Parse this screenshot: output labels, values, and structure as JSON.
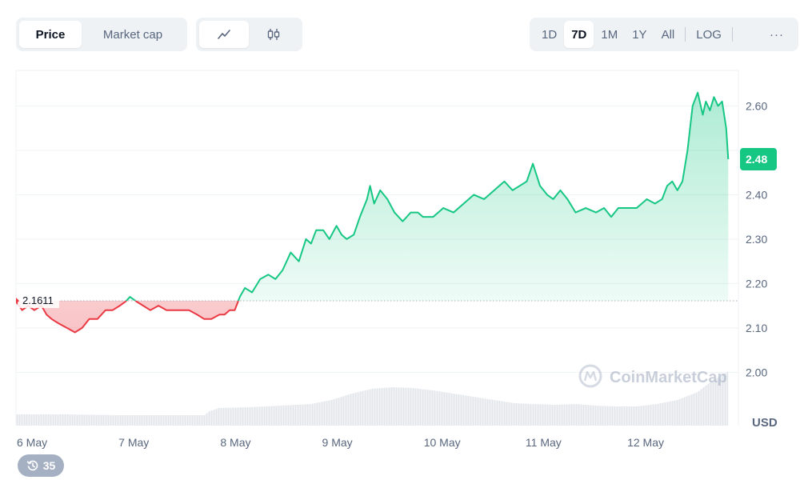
{
  "tabs": {
    "type": [
      {
        "label": "Price",
        "active": true
      },
      {
        "label": "Market cap",
        "active": false
      }
    ],
    "style": [
      {
        "icon": "line-chart-icon",
        "active": true
      },
      {
        "icon": "candlestick-icon",
        "active": false
      }
    ],
    "range": [
      {
        "label": "1D",
        "active": false
      },
      {
        "label": "7D",
        "active": true
      },
      {
        "label": "1M",
        "active": false
      },
      {
        "label": "1Y",
        "active": false
      },
      {
        "label": "All",
        "active": false
      }
    ],
    "log_label": "LOG",
    "more_label": "···"
  },
  "watermark": "CoinMarketCap",
  "history_count": "35",
  "colors": {
    "up": "#16c784",
    "down": "#ea3943",
    "grid": "#eff2f5",
    "axis_text": "#58667e",
    "volume": "#e8ebef"
  },
  "chart_data": {
    "type": "area",
    "currency_label": "USD",
    "baseline": 2.1611,
    "baseline_label": "2.1611",
    "current_value": 2.48,
    "current_label": "2.48",
    "ylim": [
      1.88,
      2.68
    ],
    "yticks": [
      2.0,
      2.1,
      2.2,
      2.3,
      2.4,
      2.5,
      2.6
    ],
    "ytick_labels": [
      "2.00",
      "2.10",
      "2.20",
      "2.30",
      "2.40",
      "",
      "2.60"
    ],
    "xlim": [
      0,
      7.1
    ],
    "xticks": [
      0,
      1,
      2,
      3,
      4,
      5,
      6
    ],
    "xtick_labels": [
      "6 May",
      "7 May",
      "8 May",
      "9 May",
      "10 May",
      "11 May",
      "12 May"
    ],
    "series": [
      {
        "values_x": [
          0.0,
          0.06,
          0.12,
          0.18,
          0.25,
          0.3,
          0.35,
          0.42,
          0.5,
          0.58,
          0.65,
          0.72,
          0.8,
          0.88,
          0.95,
          1.02,
          1.08,
          1.12,
          1.18,
          1.25,
          1.32,
          1.4,
          1.48,
          1.55,
          1.62,
          1.7,
          1.78,
          1.85,
          1.92,
          2.0,
          2.05,
          2.1,
          2.15,
          2.2,
          2.25,
          2.32,
          2.4,
          2.48,
          2.55,
          2.62,
          2.7,
          2.78,
          2.85,
          2.9,
          2.95,
          3.02,
          3.08,
          3.15,
          3.2,
          3.25,
          3.32,
          3.38,
          3.45,
          3.48,
          3.52,
          3.58,
          3.65,
          3.72,
          3.8,
          3.88,
          3.95,
          4.0,
          4.1,
          4.2,
          4.3,
          4.4,
          4.5,
          4.6,
          4.7,
          4.75,
          4.8,
          4.88,
          4.95,
          5.02,
          5.08,
          5.15,
          5.22,
          5.28,
          5.35,
          5.42,
          5.5,
          5.6,
          5.7,
          5.78,
          5.85,
          5.92,
          6.0,
          6.1,
          6.2,
          6.28,
          6.35,
          6.4,
          6.45,
          6.5,
          6.55,
          6.6,
          6.65,
          6.7,
          6.75,
          6.78,
          6.82,
          6.86,
          6.9,
          6.94,
          6.98,
          7.0
        ],
        "values_y": [
          2.16,
          2.14,
          2.15,
          2.14,
          2.15,
          2.13,
          2.12,
          2.11,
          2.1,
          2.09,
          2.1,
          2.12,
          2.12,
          2.14,
          2.14,
          2.15,
          2.16,
          2.17,
          2.16,
          2.15,
          2.14,
          2.15,
          2.14,
          2.14,
          2.14,
          2.14,
          2.13,
          2.12,
          2.12,
          2.13,
          2.13,
          2.14,
          2.14,
          2.17,
          2.19,
          2.18,
          2.21,
          2.22,
          2.21,
          2.23,
          2.27,
          2.25,
          2.3,
          2.29,
          2.32,
          2.32,
          2.3,
          2.33,
          2.31,
          2.3,
          2.31,
          2.35,
          2.39,
          2.42,
          2.38,
          2.41,
          2.39,
          2.36,
          2.34,
          2.36,
          2.36,
          2.35,
          2.35,
          2.37,
          2.36,
          2.38,
          2.4,
          2.39,
          2.41,
          2.42,
          2.43,
          2.41,
          2.42,
          2.43,
          2.47,
          2.42,
          2.4,
          2.39,
          2.41,
          2.39,
          2.36,
          2.37,
          2.36,
          2.37,
          2.35,
          2.37,
          2.37,
          2.37,
          2.39,
          2.38,
          2.39,
          2.42,
          2.43,
          2.41,
          2.43,
          2.5,
          2.6,
          2.63,
          2.58,
          2.61,
          2.59,
          2.62,
          2.6,
          2.61,
          2.55,
          2.48
        ]
      }
    ],
    "volume": {
      "values_x": [
        0.0,
        0.5,
        1.0,
        1.5,
        1.85,
        1.9,
        2.0,
        2.3,
        2.6,
        2.9,
        3.1,
        3.3,
        3.5,
        3.7,
        3.9,
        4.1,
        4.3,
        4.5,
        4.7,
        4.9,
        5.1,
        5.3,
        5.5,
        5.7,
        5.9,
        6.1,
        6.3,
        6.5,
        6.7,
        6.8,
        6.9,
        7.0
      ],
      "values": [
        14,
        14,
        13,
        13,
        13,
        18,
        22,
        23,
        25,
        27,
        32,
        40,
        46,
        48,
        47,
        44,
        40,
        36,
        32,
        28,
        27,
        26,
        27,
        25,
        24,
        24,
        27,
        32,
        42,
        52,
        60,
        68
      ]
    }
  }
}
